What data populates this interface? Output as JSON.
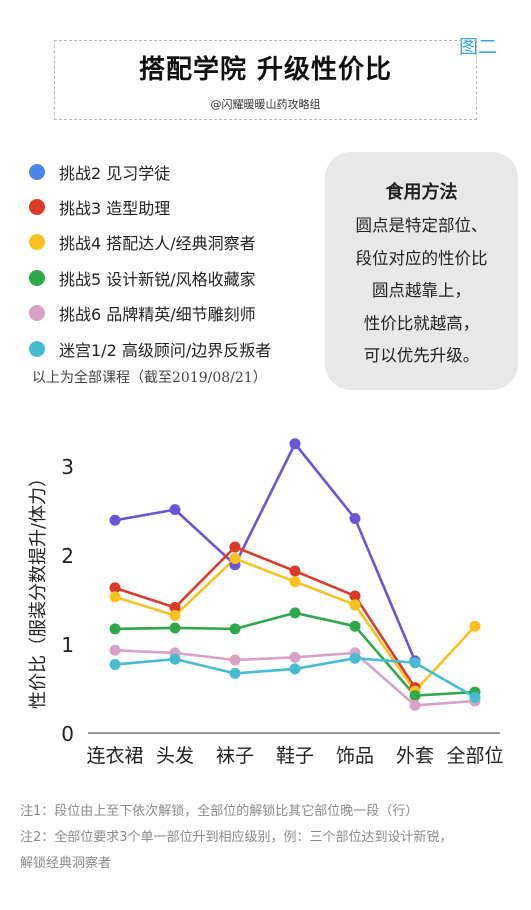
{
  "figure_label": "图二",
  "header": {
    "title": "搭配学院  升级性价比",
    "subtitle": "@闪耀暖暖山药攻略组"
  },
  "legend_note": "以上为全部课程（截至2019/08/21）",
  "method": {
    "title": "食用方法",
    "lines": [
      "圆点是特定部位、",
      "段位对应的性价比",
      "圆点越靠上，",
      "性价比就越高，",
      "可以优先升级。"
    ]
  },
  "footnotes": [
    "注1：段位由上至下依次解锁，全部位的解锁比其它部位晚一段（行）",
    "注2：全部位要求3个单一部位升到相应级别，例：三个部位达到设计新锐，",
    "解锁经典洞察者"
  ],
  "colors": {
    "blue": "#4a86e8",
    "red": "#db3a28",
    "yellow": "#f9c11f",
    "green": "#2ea84a",
    "pink": "#d7a2c6",
    "cyan": "#45bcd4",
    "purple": "#6a55d4"
  },
  "chart_data": {
    "type": "line",
    "categories": [
      "连衣裙",
      "头发",
      "袜子",
      "鞋子",
      "饰品",
      "外套",
      "全部位"
    ],
    "ylabel": "性价比（服装分数提升/体力）",
    "ylim": [
      0,
      3.4
    ],
    "yticks": [
      0,
      1,
      2,
      3
    ],
    "legend_placement": "top",
    "series": [
      {
        "name": "挑战2 见习学徒",
        "color": "#6a55d4",
        "legend_color": "#4a86e8",
        "values": [
          2.39,
          2.51,
          1.89,
          3.25,
          2.41,
          0.81,
          null
        ]
      },
      {
        "name": "挑战3 造型助理",
        "color": "#db3a28",
        "legend_color": "#db3a28",
        "values": [
          1.63,
          1.41,
          2.09,
          1.82,
          1.54,
          0.51,
          null
        ]
      },
      {
        "name": "挑战4 搭配达人/经典洞察者",
        "color": "#f9c11f",
        "legend_color": "#f9c11f",
        "values": [
          1.53,
          1.32,
          1.96,
          1.7,
          1.44,
          0.47,
          1.2
        ]
      },
      {
        "name": "挑战5 设计新锐/风格收藏家",
        "color": "#2ea84a",
        "legend_color": "#2ea84a",
        "values": [
          1.17,
          1.18,
          1.17,
          1.35,
          1.2,
          0.42,
          0.46
        ]
      },
      {
        "name": "挑战6 品牌精英/细节雕刻师",
        "color": "#d7a2c6",
        "legend_color": "#d7a2c6",
        "values": [
          0.93,
          0.9,
          0.82,
          0.85,
          0.9,
          0.31,
          0.36
        ]
      },
      {
        "name": "迷宫1/2 高级顾问/边界反叛者",
        "color": "#45bcd4",
        "legend_color": "#45bcd4",
        "values": [
          0.77,
          0.83,
          0.67,
          0.72,
          0.84,
          0.79,
          0.4
        ]
      }
    ]
  }
}
